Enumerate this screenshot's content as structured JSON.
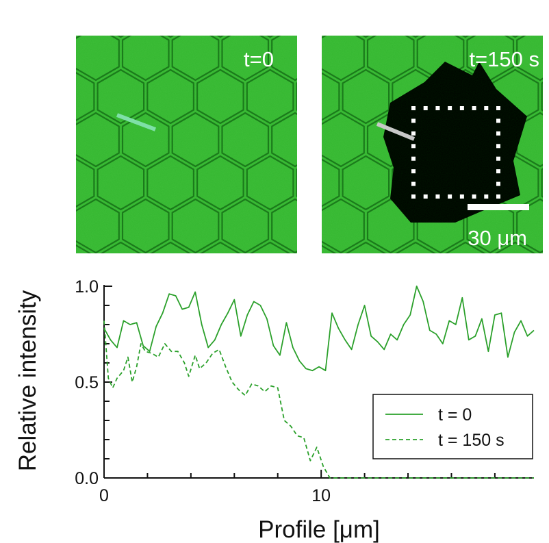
{
  "panels": [
    {
      "label": "t=0",
      "cleared": false
    },
    {
      "label": "t=150 s",
      "cleared": true,
      "scale_bar": "30 μm"
    }
  ],
  "colors": {
    "tissue": "#3fbf3a",
    "membrane": "#1e7a1e",
    "line_t0": "#7fe0a8",
    "line_t150": "#c8c8c8",
    "series": "#2aa02a"
  },
  "chart_data": {
    "type": "line",
    "xlabel": "Profile [μm]",
    "ylabel": "Relative intensity",
    "xlim": [
      0,
      19.8
    ],
    "ylim": [
      0,
      1.0
    ],
    "x_ticks": [
      0,
      10
    ],
    "x_tick_labels": [
      "0",
      "10"
    ],
    "y_ticks": [
      0,
      0.5,
      1.0
    ],
    "y_tick_labels": [
      "0.0",
      "0.5",
      "1.0"
    ],
    "legend": "bottom-right",
    "series": [
      {
        "name": "t = 0",
        "style": "solid",
        "x": [
          0,
          0.3,
          0.6,
          0.9,
          1.2,
          1.5,
          1.8,
          2.1,
          2.4,
          2.7,
          3.0,
          3.3,
          3.6,
          3.9,
          4.2,
          4.5,
          4.8,
          5.1,
          5.4,
          5.7,
          6.0,
          6.3,
          6.6,
          6.9,
          7.2,
          7.5,
          7.8,
          8.1,
          8.4,
          8.7,
          9.0,
          9.3,
          9.6,
          9.9,
          10.2,
          10.5,
          10.8,
          11.1,
          11.4,
          11.7,
          12.0,
          12.3,
          12.6,
          12.9,
          13.2,
          13.5,
          13.8,
          14.1,
          14.4,
          14.7,
          15.0,
          15.3,
          15.6,
          15.9,
          16.2,
          16.5,
          16.8,
          17.1,
          17.4,
          17.7,
          18.0,
          18.3,
          18.6,
          18.9,
          19.2,
          19.5,
          19.8
        ],
        "y": [
          0.78,
          0.72,
          0.68,
          0.82,
          0.8,
          0.81,
          0.69,
          0.66,
          0.79,
          0.86,
          0.96,
          0.95,
          0.88,
          0.89,
          0.97,
          0.8,
          0.68,
          0.72,
          0.8,
          0.86,
          0.93,
          0.74,
          0.85,
          0.92,
          0.9,
          0.83,
          0.69,
          0.64,
          0.81,
          0.68,
          0.61,
          0.57,
          0.56,
          0.58,
          0.56,
          0.86,
          0.78,
          0.72,
          0.67,
          0.8,
          0.9,
          0.74,
          0.71,
          0.67,
          0.75,
          0.72,
          0.8,
          0.85,
          1.0,
          0.92,
          0.77,
          0.75,
          0.7,
          0.82,
          0.8,
          0.94,
          0.72,
          0.74,
          0.83,
          0.66,
          0.85,
          0.86,
          0.63,
          0.76,
          0.82,
          0.74,
          0.77
        ]
      },
      {
        "name": "t = 150 s",
        "style": "dashed",
        "x": [
          0,
          0.2,
          0.4,
          0.6,
          0.9,
          1.1,
          1.3,
          1.5,
          1.7,
          1.9,
          2.2,
          2.5,
          2.8,
          3.1,
          3.4,
          3.7,
          3.9,
          4.2,
          4.4,
          4.7,
          5.0,
          5.3,
          5.6,
          5.9,
          6.2,
          6.5,
          6.8,
          7.1,
          7.4,
          7.7,
          8.0,
          8.3,
          8.6,
          8.9,
          9.2,
          9.5,
          9.8,
          10.1,
          10.4,
          10.7,
          11.0,
          19.8
        ],
        "y": [
          0.82,
          0.52,
          0.47,
          0.52,
          0.56,
          0.63,
          0.5,
          0.58,
          0.7,
          0.66,
          0.65,
          0.63,
          0.7,
          0.66,
          0.66,
          0.6,
          0.53,
          0.64,
          0.57,
          0.6,
          0.65,
          0.67,
          0.58,
          0.5,
          0.46,
          0.43,
          0.49,
          0.48,
          0.45,
          0.48,
          0.47,
          0.3,
          0.27,
          0.22,
          0.21,
          0.09,
          0.16,
          0.06,
          0.0,
          0.0,
          0.0,
          0.0
        ]
      }
    ]
  }
}
